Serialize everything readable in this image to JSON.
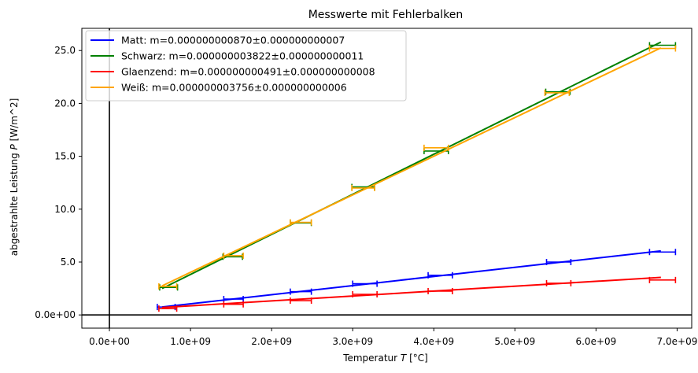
{
  "chart_data": {
    "type": "line",
    "title": "Messwerte mit Fehlerbalken",
    "xlabel_prefix": "Temperatur ",
    "xlabel_var": "T",
    "xlabel_suffix": " [°C]",
    "ylabel_prefix": "abgestrahlte Leistung ",
    "ylabel_var": "P",
    "ylabel_suffix": " [W/m^2]",
    "xlim": [
      -340000000,
      7180000000
    ],
    "ylim": [
      -1.25,
      27.1
    ],
    "x_ticks": [
      {
        "value": 0,
        "label": "0.0e+00"
      },
      {
        "value": 1000000000,
        "label": "1.0e+09"
      },
      {
        "value": 2000000000,
        "label": "2.0e+09"
      },
      {
        "value": 3000000000,
        "label": "3.0e+09"
      },
      {
        "value": 4000000000,
        "label": "4.0e+09"
      },
      {
        "value": 5000000000,
        "label": "5.0e+09"
      },
      {
        "value": 6000000000,
        "label": "6.0e+09"
      },
      {
        "value": 7000000000,
        "label": "7.0e+09"
      }
    ],
    "y_ticks": [
      {
        "value": 0,
        "label": "0.0e+00"
      },
      {
        "value": 5,
        "label": "5.0"
      },
      {
        "value": 10,
        "label": "10.0"
      },
      {
        "value": 15,
        "label": "15.0"
      },
      {
        "value": 20,
        "label": "20.0"
      },
      {
        "value": 25,
        "label": "25.0"
      }
    ],
    "legend_position": "top-left",
    "grid": false,
    "series": [
      {
        "name": "Matt: m=0.000000000870±0.000000000007",
        "color": "#0000ff",
        "fit_x": [
          650000000,
          6800000000
        ],
        "fit_y": [
          0.75,
          6.05
        ],
        "points": [
          {
            "x": 700000000,
            "y": 0.75,
            "xerr": 110000000
          },
          {
            "x": 1530000000,
            "y": 1.5,
            "xerr": 120000000
          },
          {
            "x": 2360000000,
            "y": 2.2,
            "xerr": 130000000
          },
          {
            "x": 3150000000,
            "y": 2.95,
            "xerr": 150000000
          },
          {
            "x": 4080000000,
            "y": 3.75,
            "xerr": 150000000
          },
          {
            "x": 5540000000,
            "y": 5.0,
            "xerr": 150000000
          },
          {
            "x": 6820000000,
            "y": 5.95,
            "xerr": 160000000
          }
        ]
      },
      {
        "name": "Schwarz: m=0.000000003822±0.000000000011",
        "color": "#008000",
        "fit_x": [
          650000000,
          6800000000
        ],
        "fit_y": [
          2.5,
          25.8
        ],
        "points": [
          {
            "x": 730000000,
            "y": 2.6,
            "xerr": 110000000
          },
          {
            "x": 1520000000,
            "y": 5.5,
            "xerr": 120000000
          },
          {
            "x": 2360000000,
            "y": 8.7,
            "xerr": 130000000
          },
          {
            "x": 3130000000,
            "y": 12.1,
            "xerr": 140000000
          },
          {
            "x": 4030000000,
            "y": 15.5,
            "xerr": 150000000
          },
          {
            "x": 5530000000,
            "y": 21.1,
            "xerr": 150000000
          },
          {
            "x": 6820000000,
            "y": 25.5,
            "xerr": 160000000
          }
        ]
      },
      {
        "name": "Glaenzend: m=0.000000000491±0.000000000008",
        "color": "#ff0000",
        "fit_x": [
          650000000,
          6800000000
        ],
        "fit_y": [
          0.7,
          3.55
        ],
        "points": [
          {
            "x": 720000000,
            "y": 0.6,
            "xerr": 110000000
          },
          {
            "x": 1530000000,
            "y": 1.0,
            "xerr": 120000000
          },
          {
            "x": 2360000000,
            "y": 1.35,
            "xerr": 130000000
          },
          {
            "x": 3150000000,
            "y": 1.95,
            "xerr": 150000000
          },
          {
            "x": 4080000000,
            "y": 2.25,
            "xerr": 150000000
          },
          {
            "x": 5540000000,
            "y": 3.0,
            "xerr": 150000000
          },
          {
            "x": 6820000000,
            "y": 3.3,
            "xerr": 160000000
          }
        ]
      },
      {
        "name": "Weiß: m=0.000000003756±0.000000000006",
        "color": "#ffa500",
        "fit_x": [
          650000000,
          6800000000
        ],
        "fit_y": [
          2.75,
          25.25
        ],
        "points": [
          {
            "x": 720000000,
            "y": 2.7,
            "xerr": 110000000
          },
          {
            "x": 1530000000,
            "y": 5.6,
            "xerr": 120000000
          },
          {
            "x": 2360000000,
            "y": 8.75,
            "xerr": 130000000
          },
          {
            "x": 3130000000,
            "y": 12.0,
            "xerr": 140000000
          },
          {
            "x": 4030000000,
            "y": 15.8,
            "xerr": 150000000
          },
          {
            "x": 5520000000,
            "y": 21.0,
            "xerr": 150000000
          },
          {
            "x": 6820000000,
            "y": 25.2,
            "xerr": 160000000
          }
        ]
      }
    ]
  }
}
